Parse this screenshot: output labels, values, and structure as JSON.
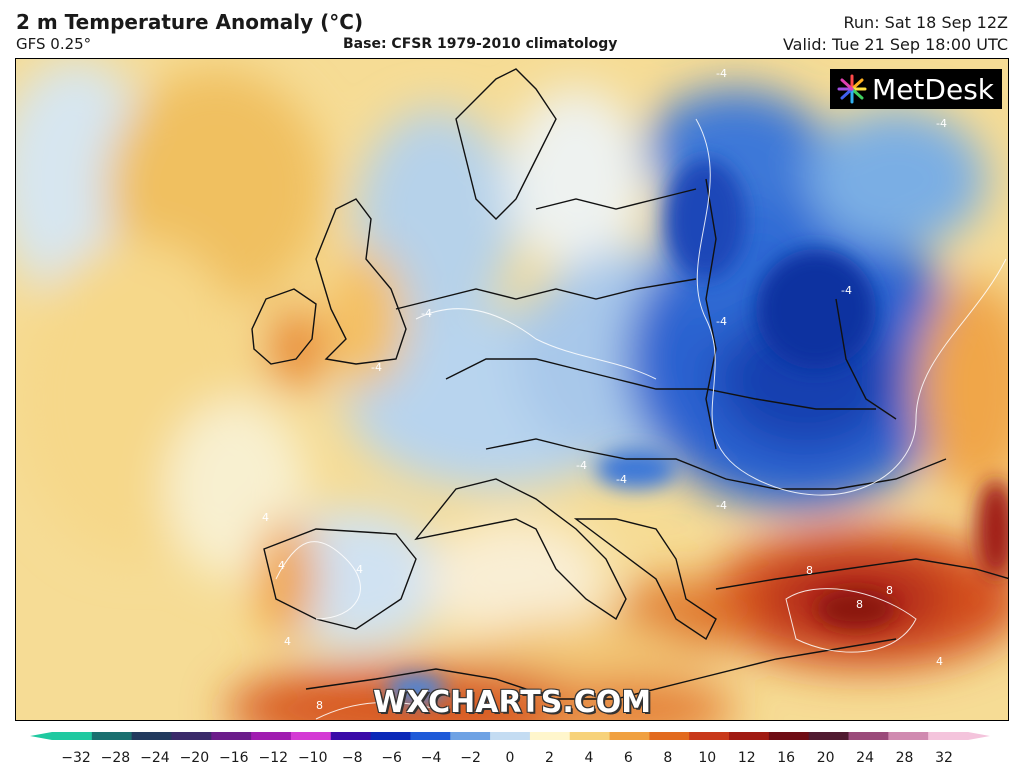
{
  "header": {
    "title": "2 m Temperature Anomaly (°C)",
    "model": "GFS 0.25°",
    "base": "Base: CFSR 1979-2010 climatology",
    "run": "Run: Sat 18 Sep 12Z",
    "valid": "Valid: Tue 21 Sep 18:00 UTC"
  },
  "logo": {
    "name": "metdesk-logo",
    "text": "MetDesk"
  },
  "watermark": "WXCHARTS.COM",
  "colorbar": {
    "ticks": [
      "−32",
      "−28",
      "−24",
      "−20",
      "−16",
      "−12",
      "−10",
      "−8",
      "−6",
      "−4",
      "−2",
      "0",
      "2",
      "4",
      "6",
      "8",
      "10",
      "12",
      "16",
      "20",
      "24",
      "28",
      "32"
    ],
    "colors": [
      "#1fc9a0",
      "#1a6f6f",
      "#223a5e",
      "#3a2a6a",
      "#6b1c8a",
      "#a01cb0",
      "#d43ad4",
      "#3a0aa8",
      "#0a28b8",
      "#1e5ad8",
      "#6ea2e4",
      "#c4dcf2",
      "#fff6cc",
      "#f7d27a",
      "#f0a040",
      "#e26a1e",
      "#c8381a",
      "#a01a12",
      "#6e0c14",
      "#501a30",
      "#9a4a7a",
      "#d08ab0",
      "#f4c4dc"
    ]
  },
  "contour_labels": [
    "-4",
    "-4",
    "-4",
    "-4",
    "-4",
    "-4",
    "-4",
    "-4",
    "-4",
    "4",
    "4",
    "4",
    "4",
    "4",
    "8",
    "8",
    "8",
    "8"
  ]
}
